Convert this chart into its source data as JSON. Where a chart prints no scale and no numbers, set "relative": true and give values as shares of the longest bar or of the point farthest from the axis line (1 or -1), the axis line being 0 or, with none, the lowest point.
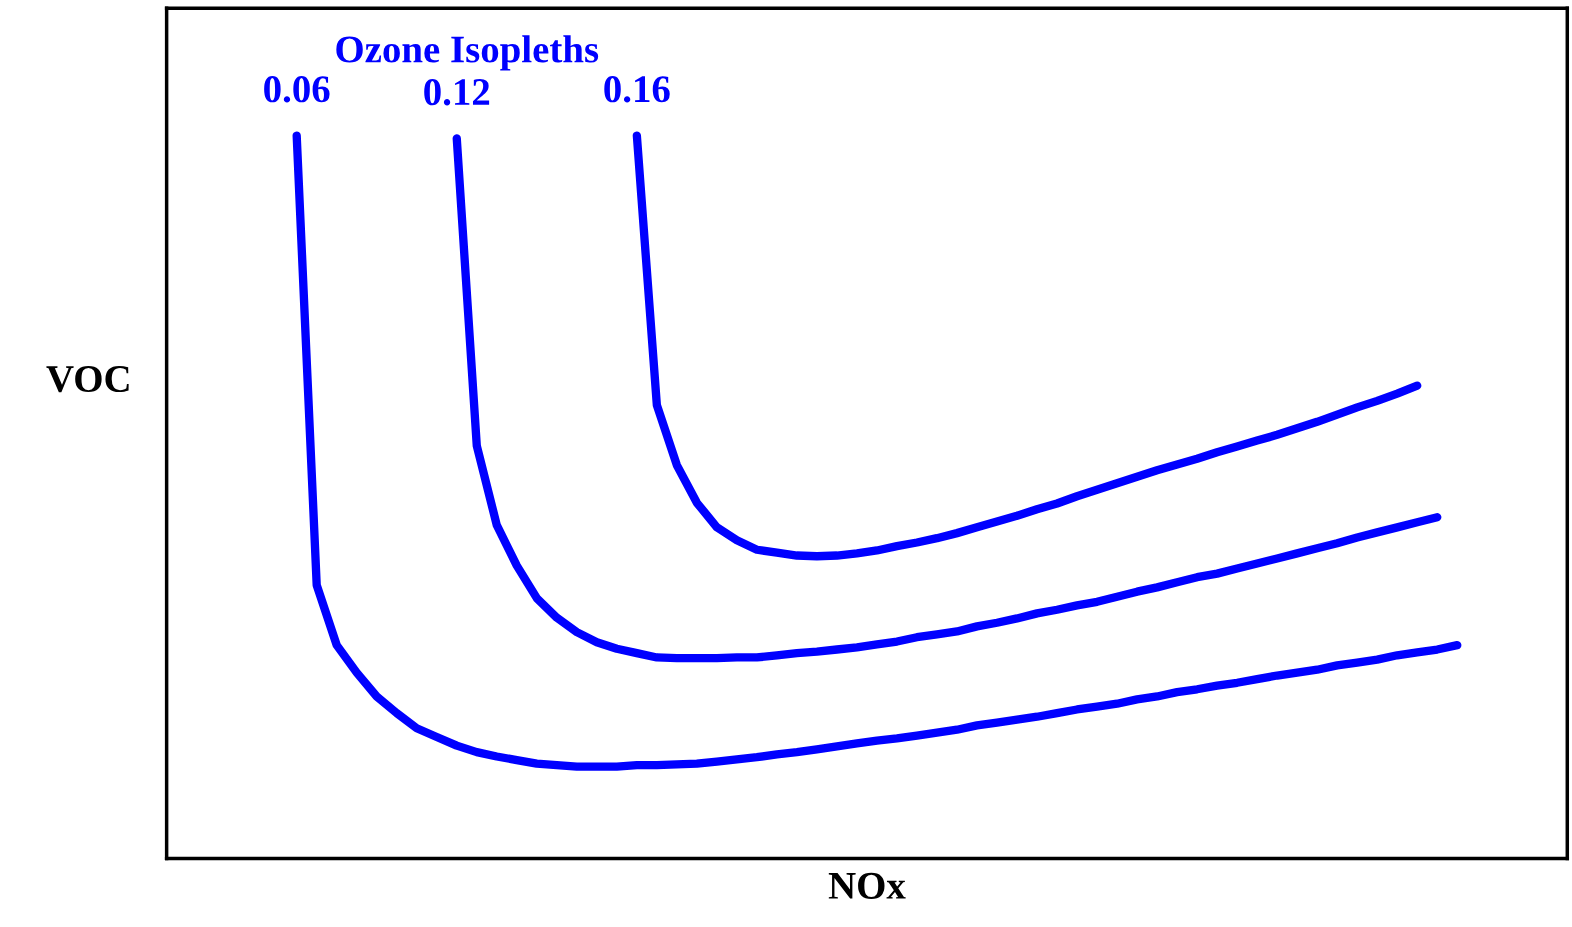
{
  "chart_data": {
    "type": "line",
    "title": "Ozone Isopleths",
    "xlabel": "NOx",
    "ylabel": "VOC",
    "relative": true,
    "legend": false,
    "marker": "none",
    "line_style": "solid",
    "categories": [
      null,
      null,
      null,
      null,
      null,
      null,
      null,
      null,
      null,
      null,
      null,
      null,
      null,
      null,
      null,
      null,
      null,
      null,
      null,
      null,
      null,
      null,
      null,
      null,
      null,
      null,
      null,
      null,
      null,
      null,
      null,
      null,
      null,
      null,
      null,
      null,
      null,
      null,
      null,
      null,
      null,
      null,
      null,
      null,
      null,
      null,
      null,
      null,
      null,
      null,
      null,
      null,
      null,
      null,
      null,
      null,
      null,
      null,
      null,
      null,
      null,
      null,
      null,
      null,
      null,
      null,
      null,
      null,
      null,
      null
    ],
    "series": [
      {
        "name": "0.06",
        "color": "#0000ff",
        "values": [
          null,
          null,
          null,
          null,
          null,
          null,
          1.0,
          0.378,
          0.295,
          0.257,
          0.224,
          0.201,
          0.18,
          0.168,
          0.156,
          0.147,
          0.141,
          0.136,
          0.131,
          0.129,
          0.127,
          0.127,
          0.127,
          0.129,
          0.129,
          0.13,
          0.131,
          0.134,
          0.137,
          0.14,
          0.144,
          0.147,
          0.151,
          0.155,
          0.159,
          0.163,
          0.166,
          0.17,
          0.174,
          0.178,
          0.184,
          0.188,
          0.192,
          0.196,
          0.201,
          0.206,
          0.21,
          0.214,
          0.22,
          0.224,
          0.23,
          0.234,
          0.239,
          0.243,
          0.248,
          0.253,
          0.257,
          0.261,
          0.267,
          0.271,
          0.275,
          0.281,
          0.285,
          0.289,
          0.295,
          null,
          null,
          null,
          null,
          null
        ]
      },
      {
        "name": "0.12",
        "color": "#0000ff",
        "values": [
          null,
          null,
          null,
          null,
          null,
          null,
          null,
          null,
          null,
          null,
          null,
          null,
          null,
          null,
          0.996,
          0.571,
          0.461,
          0.405,
          0.36,
          0.333,
          0.313,
          0.299,
          0.29,
          0.284,
          0.278,
          0.277,
          0.277,
          0.277,
          0.278,
          0.278,
          0.281,
          0.284,
          0.286,
          0.289,
          0.292,
          0.296,
          0.3,
          0.306,
          0.31,
          0.314,
          0.321,
          0.326,
          0.332,
          0.339,
          0.344,
          0.35,
          0.355,
          0.362,
          0.369,
          0.375,
          0.382,
          0.389,
          0.394,
          0.401,
          0.408,
          0.415,
          0.422,
          0.429,
          0.436,
          0.444,
          0.451,
          0.458,
          0.465,
          0.472,
          null,
          null,
          null,
          null,
          null,
          null
        ]
      },
      {
        "name": "0.16",
        "color": "#0000ff",
        "values": [
          null,
          null,
          null,
          null,
          null,
          null,
          null,
          null,
          null,
          null,
          null,
          null,
          null,
          null,
          null,
          null,
          null,
          null,
          null,
          null,
          null,
          null,
          null,
          1.0,
          0.627,
          0.544,
          0.492,
          0.458,
          0.44,
          0.427,
          0.423,
          0.419,
          0.418,
          0.419,
          0.422,
          0.426,
          0.432,
          0.437,
          0.443,
          0.45,
          0.458,
          0.466,
          0.474,
          0.483,
          0.491,
          0.501,
          0.51,
          0.519,
          0.528,
          0.537,
          0.545,
          0.553,
          0.562,
          0.57,
          0.578,
          0.586,
          0.595,
          0.604,
          0.614,
          0.624,
          0.633,
          0.643,
          0.654,
          null,
          null,
          null,
          null,
          null,
          null,
          null
        ]
      }
    ]
  }
}
